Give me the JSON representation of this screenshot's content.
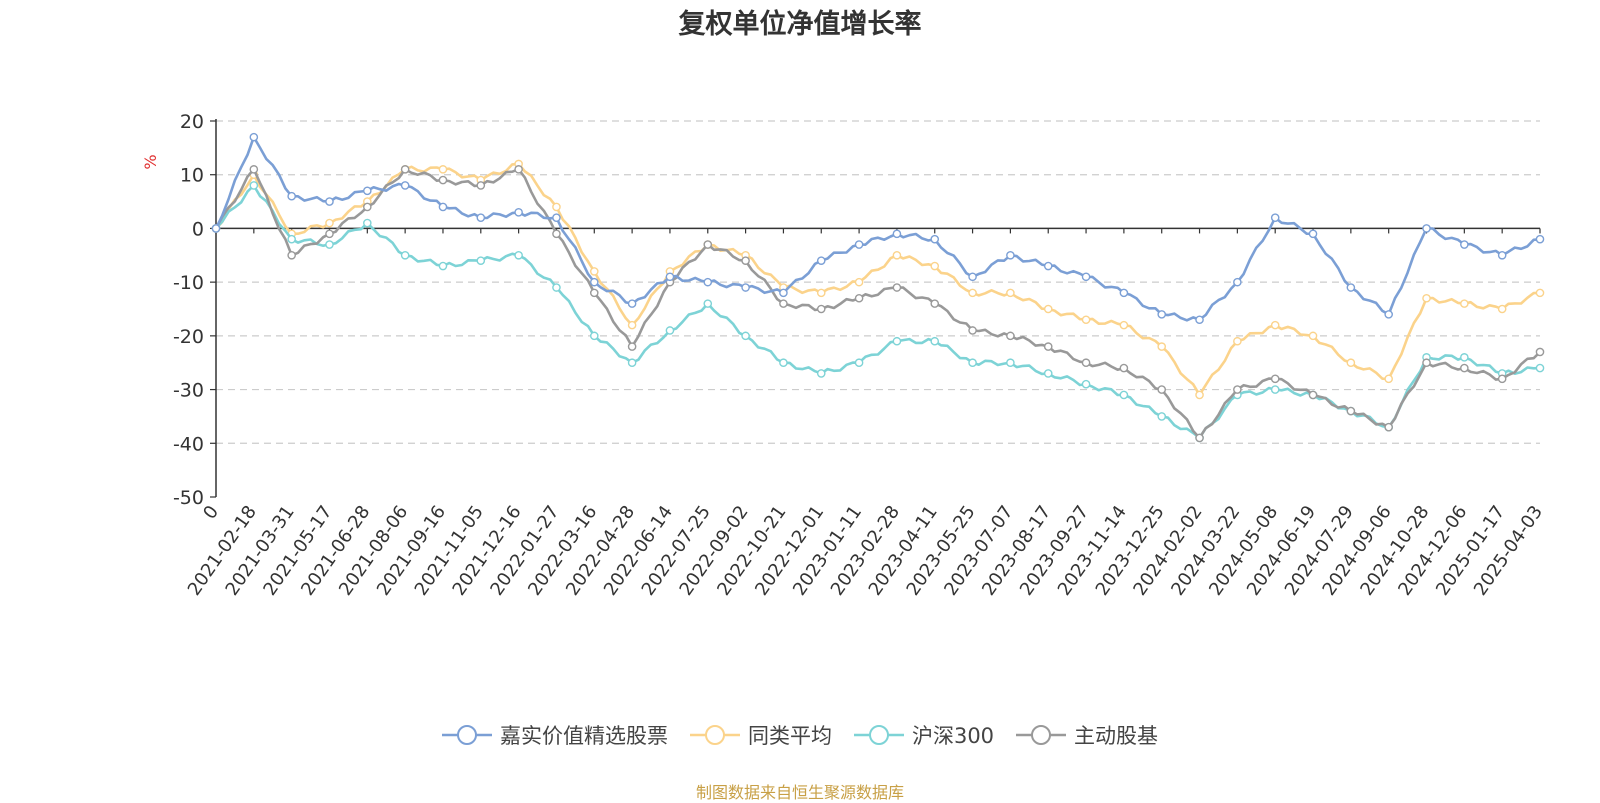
{
  "title": "复权单位净值增长率",
  "source_note": "制图数据来自恒生聚源数据库",
  "colors": {
    "嘉实价值精选股票": "#7b9fd5",
    "同类平均": "#fbd38b",
    "沪深300": "#7dd3d6",
    "主动股基": "#999999"
  },
  "chart_data": {
    "type": "line",
    "title": "复权单位净值增长率",
    "ylabel": "%",
    "xlabel": "",
    "ylim": [
      -50,
      20
    ],
    "yticks": [
      20,
      10,
      0,
      -10,
      -20,
      -30,
      -40,
      -50
    ],
    "grid": true,
    "legend_position": "bottom-center",
    "x": [
      "0",
      "2021-02-18",
      "2021-03-31",
      "2021-05-17",
      "2021-06-28",
      "2021-08-06",
      "2021-09-16",
      "2021-11-05",
      "2021-12-16",
      "2022-01-27",
      "2022-03-16",
      "2022-04-28",
      "2022-06-14",
      "2022-07-25",
      "2022-09-02",
      "2022-10-21",
      "2022-12-01",
      "2023-01-11",
      "2023-02-28",
      "2023-04-11",
      "2023-05-25",
      "2023-07-07",
      "2023-08-17",
      "2023-09-27",
      "2023-11-14",
      "2023-12-25",
      "2024-02-02",
      "2024-03-22",
      "2024-05-08",
      "2024-06-19",
      "2024-07-29",
      "2024-09-06",
      "2024-10-28",
      "2024-12-06",
      "2025-01-17",
      "2025-04-03"
    ],
    "series": [
      {
        "name": "嘉实价值精选股票",
        "values": [
          0,
          17,
          6,
          5,
          7,
          8,
          4,
          2,
          3,
          2,
          -10,
          -14,
          -9,
          -10,
          -11,
          -12,
          -6,
          -3,
          -1,
          -2,
          -9,
          -5,
          -7,
          -9,
          -12,
          -16,
          -17,
          -10,
          2,
          -1,
          -11,
          -16,
          0,
          -3,
          -5,
          -2
        ]
      },
      {
        "name": "同类平均",
        "values": [
          0,
          10,
          -1,
          1,
          5,
          11,
          11,
          9,
          12,
          4,
          -8,
          -18,
          -8,
          -3,
          -5,
          -11,
          -12,
          -10,
          -5,
          -7,
          -12,
          -12,
          -15,
          -17,
          -18,
          -22,
          -31,
          -21,
          -18,
          -20,
          -25,
          -28,
          -13,
          -14,
          -15,
          -12
        ]
      },
      {
        "name": "沪深300",
        "values": [
          0,
          8,
          -2,
          -3,
          1,
          -5,
          -7,
          -6,
          -5,
          -11,
          -20,
          -25,
          -19,
          -14,
          -20,
          -25,
          -27,
          -25,
          -21,
          -21,
          -25,
          -25,
          -27,
          -29,
          -31,
          -35,
          -39,
          -31,
          -30,
          -31,
          -34,
          -37,
          -24,
          -24,
          -27,
          -26
        ]
      },
      {
        "name": "主动股基",
        "values": [
          0,
          11,
          -5,
          -1,
          4,
          11,
          9,
          8,
          11,
          -1,
          -12,
          -22,
          -10,
          -3,
          -6,
          -14,
          -15,
          -13,
          -11,
          -14,
          -19,
          -20,
          -22,
          -25,
          -26,
          -30,
          -39,
          -30,
          -28,
          -31,
          -34,
          -37,
          -25,
          -26,
          -28,
          -23
        ]
      }
    ]
  }
}
